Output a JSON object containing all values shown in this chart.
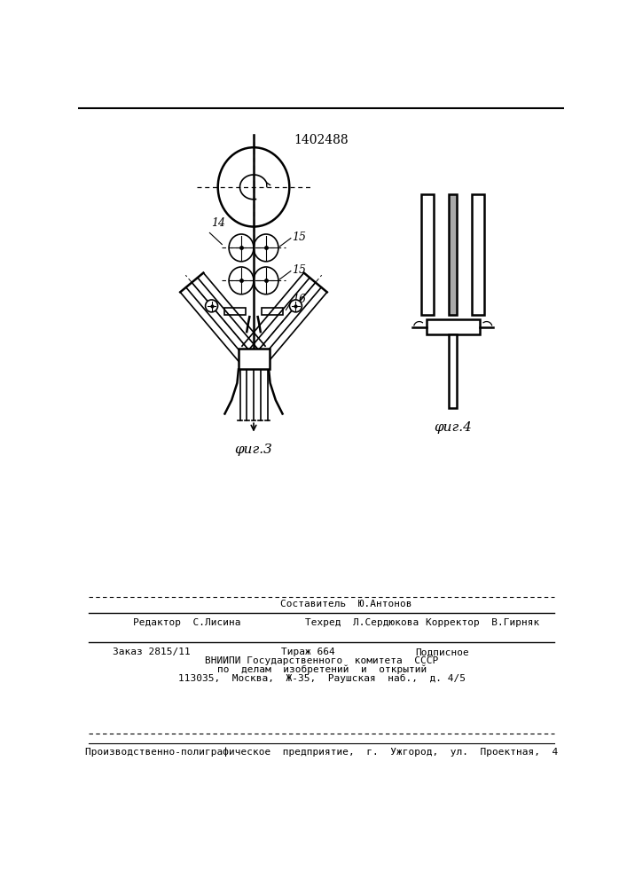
{
  "title": "1402488",
  "fig3_label": "φиг.3",
  "fig4_label": "φиг.4",
  "label_14": "14",
  "label_15a": "15",
  "label_15b": "15",
  "label_16": "16",
  "line1": "Составитель  Ю.Антонов",
  "line2_left": "Редактор  С.Лисина",
  "line2_mid": "Техред  Л.Сердюкова",
  "line2_right": "Корректор  В.Гирняк",
  "line3_left": "Заказ 2815/11",
  "line3_mid": "Тираж 664",
  "line3_right": "Подписное",
  "line4": "ВНИИПИ Государственного  комитета  СССР",
  "line5": "по  делам  изобретений  и  открытий",
  "line6": "113035,  Москва,  Ж-35,  Раушская  наб.,  д. 4/5",
  "line7": "Производственно-полиграфическое  предприятие,  г.  Ужгород,  ул.  Проектная,  4"
}
